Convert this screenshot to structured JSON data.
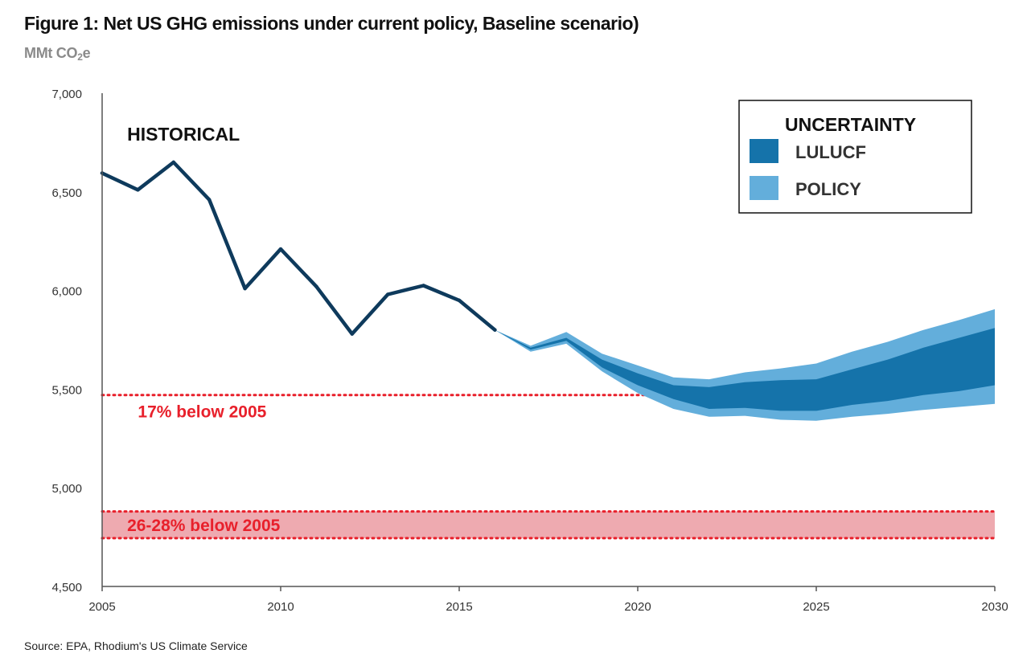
{
  "chart_data": {
    "type": "area",
    "title": "Figure 1: Net US GHG emissions under current policy, Baseline scenario)",
    "unit_prefix": "MMt CO",
    "unit_sub": "2",
    "unit_suffix": "e",
    "source": "Source: EPA, Rhodium's US Climate Service",
    "xlim": [
      2005,
      2030
    ],
    "ylim": [
      4500,
      7000
    ],
    "x_ticks": [
      2005,
      2010,
      2015,
      2020,
      2025,
      2030
    ],
    "x_tick_labels": [
      "2005",
      "2010",
      "2015",
      "2020",
      "2025",
      "2030"
    ],
    "y_ticks": [
      4500,
      5000,
      5500,
      6000,
      6500,
      7000
    ],
    "y_tick_labels": [
      "4,500",
      "5,000",
      "5,500",
      "6,000",
      "6,500",
      "7,000"
    ],
    "grid": false,
    "legend_placement": "top-right",
    "historical": {
      "label": "HISTORICAL",
      "color": "#0e3a5c",
      "x": [
        2005,
        2006,
        2007,
        2008,
        2009,
        2010,
        2011,
        2012,
        2013,
        2014,
        2015,
        2016
      ],
      "y": [
        6595,
        6510,
        6650,
        6460,
        6010,
        6210,
        6020,
        5780,
        5980,
        6025,
        5950,
        5800
      ]
    },
    "projection_x": [
      2016,
      2017,
      2018,
      2019,
      2020,
      2021,
      2022,
      2023,
      2024,
      2025,
      2026,
      2027,
      2028,
      2029,
      2030
    ],
    "lulucf_band": {
      "color": "#1573aa",
      "lower": [
        5800,
        5700,
        5745,
        5610,
        5520,
        5450,
        5400,
        5405,
        5390,
        5390,
        5420,
        5440,
        5470,
        5490,
        5520
      ],
      "upper": [
        5800,
        5710,
        5760,
        5650,
        5580,
        5520,
        5510,
        5535,
        5545,
        5550,
        5600,
        5650,
        5710,
        5760,
        5810
      ]
    },
    "policy_band": {
      "color": "#63aedb",
      "lower": [
        5800,
        5690,
        5730,
        5590,
        5480,
        5400,
        5360,
        5365,
        5345,
        5340,
        5360,
        5375,
        5395,
        5410,
        5425
      ],
      "upper": [
        5800,
        5720,
        5790,
        5680,
        5620,
        5560,
        5550,
        5585,
        5605,
        5630,
        5690,
        5740,
        5800,
        5850,
        5905
      ]
    },
    "targets": [
      {
        "label": "17% below 2005",
        "value": 5470,
        "color": "#e8202b",
        "label_x": 2006,
        "label_y": 5390
      },
      {
        "label": "26-28% below 2005",
        "value_low": 4745,
        "value_high": 4880,
        "color": "#e8202b",
        "band_color": "#eeaab0",
        "label_x": 2005.7,
        "label_y": 4813
      }
    ],
    "legend": {
      "title": "UNCERTAINTY",
      "items": [
        {
          "label": "LULUCF",
          "color": "#1573aa"
        },
        {
          "label": "POLICY",
          "color": "#63aedb"
        }
      ]
    }
  }
}
